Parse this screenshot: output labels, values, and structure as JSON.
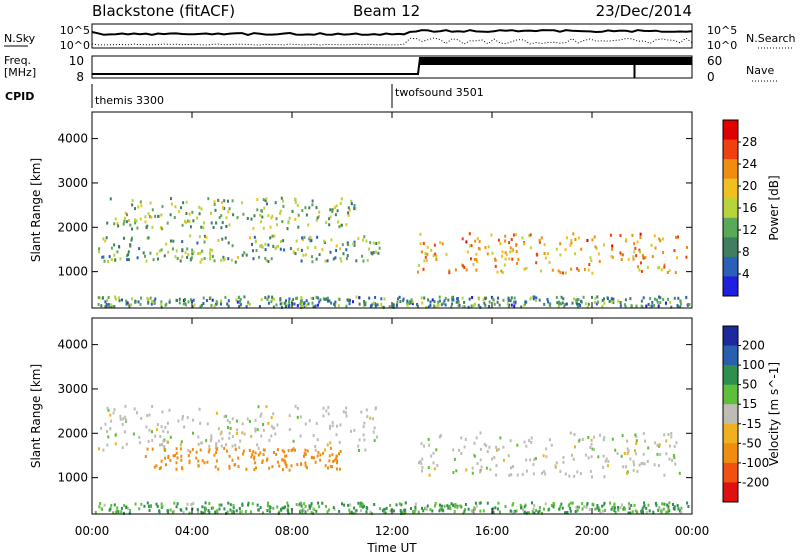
{
  "header": {
    "title": "Blackstone (fitACF)",
    "beam": "Beam 12",
    "date": "23/Dec/2014"
  },
  "noise_panel": {
    "left_label": "N.Sky",
    "right_label": "N.Search",
    "left_ticks": [
      "10^5",
      "10^0"
    ],
    "right_ticks": [
      "10^5",
      "10^0"
    ]
  },
  "freq_panel": {
    "left_label_1": "Freq.",
    "left_label_2": "[MHz]",
    "left_ticks": [
      "10",
      "8"
    ],
    "right_label": "Nave",
    "right_ticks": [
      "60",
      "0"
    ]
  },
  "cpid": {
    "label": "CPID",
    "modes": [
      {
        "name": "themis 3300",
        "start_hour": 0
      },
      {
        "name": "twofsound 3501",
        "start_hour": 12.0
      }
    ]
  },
  "colors": {
    "power": [
      "#1f1fe0",
      "#2c5fb8",
      "#3f7f5f",
      "#5aa85a",
      "#b8d43a",
      "#f0c020",
      "#f08c10",
      "#f04010",
      "#e00000"
    ],
    "velocity": [
      "#1c2a9c",
      "#2a5fb0",
      "#2e8f4e",
      "#5fbf3a",
      "#bdbdb5",
      "#f0b020",
      "#f08c10",
      "#f05010",
      "#e01010"
    ],
    "frame": "#000000"
  },
  "chart_data": [
    {
      "type": "heatmap",
      "title": "Power",
      "xlabel": "Time UT",
      "ylabel": "Slant Range [km]",
      "xlim": [
        0,
        24
      ],
      "ylim": [
        180,
        4600
      ],
      "xticks": [
        "00:00",
        "04:00",
        "08:00",
        "12:00",
        "16:00",
        "20:00",
        "00:00"
      ],
      "yticks": [
        1000,
        2000,
        3000,
        4000
      ],
      "colorbar": {
        "label": "Power [dB]",
        "ticks": [
          4,
          8,
          12,
          16,
          20,
          24,
          28
        ],
        "range": [
          0,
          32
        ]
      },
      "features": [
        {
          "name": "near-range clutter",
          "t_range": [
            0.1,
            23.9
          ],
          "r_center": 300,
          "r_width": 120,
          "level_db": 10
        },
        {
          "name": "pre-midnight band",
          "t_range": [
            0.2,
            11.5
          ],
          "r_center": 1500,
          "r_width": 300,
          "level_db": 12
        },
        {
          "name": "upper band",
          "t_range": [
            0.5,
            10.5
          ],
          "r_center": 2300,
          "r_width": 350,
          "level_db": 14
        },
        {
          "name": "post-midnight band",
          "t_range": [
            13.0,
            23.8
          ],
          "r_center": 1400,
          "r_width": 450,
          "level_db": 22
        }
      ]
    },
    {
      "type": "heatmap",
      "title": "Velocity",
      "xlabel": "Time UT",
      "ylabel": "Slant Range [km]",
      "xlim": [
        0,
        24
      ],
      "ylim": [
        180,
        4600
      ],
      "xticks": [
        "00:00",
        "04:00",
        "08:00",
        "12:00",
        "16:00",
        "20:00",
        "00:00"
      ],
      "yticks": [
        1000,
        2000,
        3000,
        4000
      ],
      "colorbar": {
        "label": "Velocity [m s^-1]",
        "ticks": [
          200,
          100,
          50,
          15,
          -15,
          -50,
          -100,
          -200
        ],
        "range": [
          -250,
          250
        ]
      },
      "features": [
        {
          "name": "ground scatter",
          "t_range": [
            0.2,
            11.5
          ],
          "r_center": 2100,
          "r_width": 500,
          "velocity": 0
        },
        {
          "name": "negative band",
          "t_range": [
            2.0,
            10.0
          ],
          "r_center": 1400,
          "r_width": 250,
          "velocity": -70
        },
        {
          "name": "near-range positive",
          "t_range": [
            0.1,
            23.9
          ],
          "r_center": 300,
          "r_width": 120,
          "velocity": 30
        },
        {
          "name": "post-midnight ground scatter",
          "t_range": [
            13.0,
            23.5
          ],
          "r_center": 1500,
          "r_width": 500,
          "velocity": 0
        }
      ]
    }
  ]
}
